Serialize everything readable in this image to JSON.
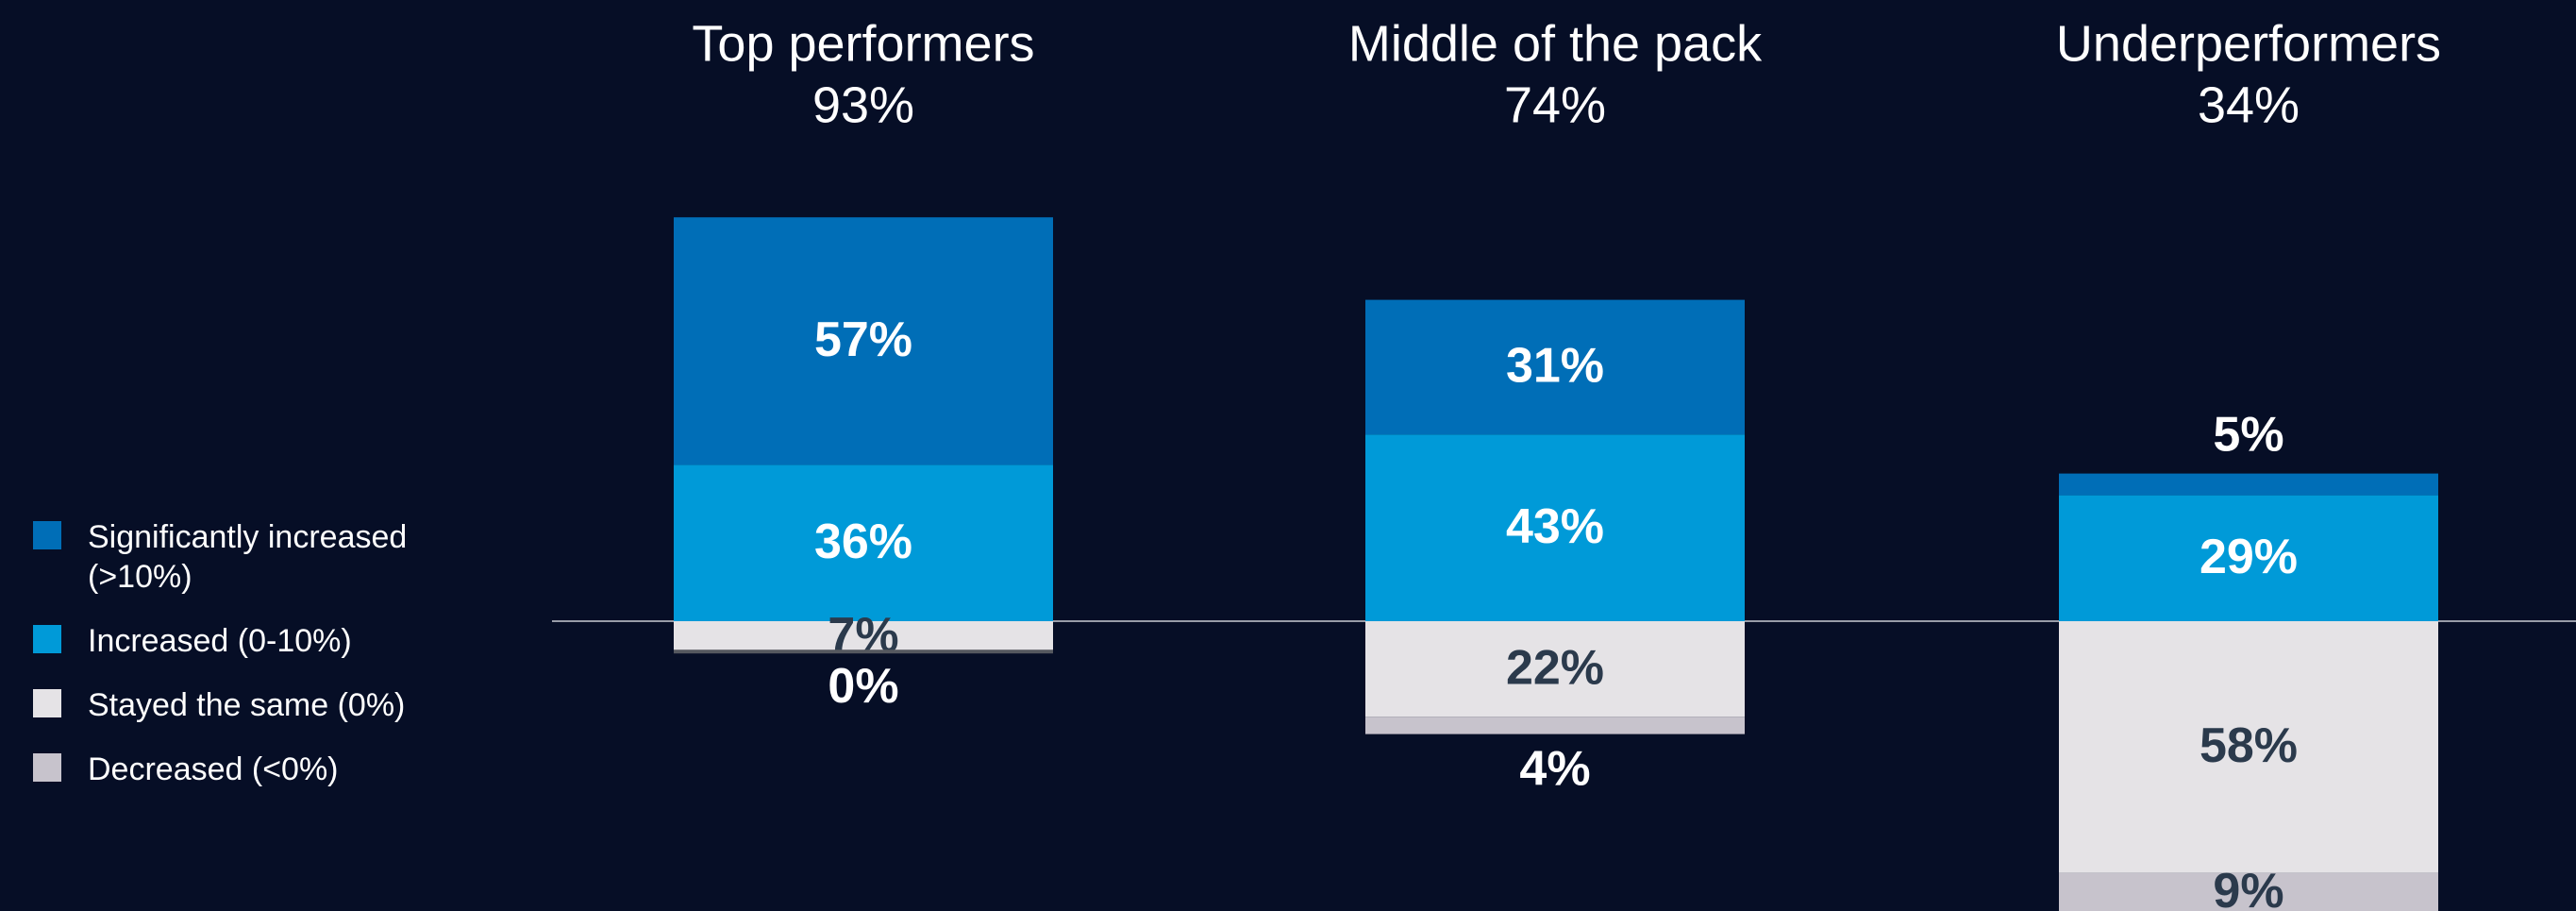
{
  "chart_data": {
    "type": "diverging-stacked-bar",
    "categories": [
      "Top performers",
      "Middle of the pack",
      "Underperformers"
    ],
    "totals": {
      "values": [
        93,
        74,
        34
      ],
      "value_labels": [
        "93%",
        "74%",
        "34%"
      ]
    },
    "series": [
      {
        "name": "Significantly increased (>10%)",
        "color": "#006eb7",
        "direction": "up",
        "values": [
          57,
          31,
          5
        ],
        "value_labels": [
          "57%",
          "31%",
          "5%"
        ]
      },
      {
        "name": "Increased (0-10%)",
        "color": "#009ad8",
        "direction": "up",
        "values": [
          36,
          43,
          29
        ],
        "value_labels": [
          "36%",
          "43%",
          "29%"
        ]
      },
      {
        "name": "Stayed the same (0%)",
        "color": "#e5e3e6",
        "direction": "down",
        "values": [
          7,
          22,
          58
        ],
        "value_labels": [
          "7%",
          "22%",
          "58%"
        ]
      },
      {
        "name": "Decreased (<0%)",
        "color": "#c7c3cc",
        "direction": "down",
        "values": [
          0,
          4,
          9
        ],
        "value_labels": [
          "0%",
          "4%",
          "9%"
        ]
      }
    ]
  }
}
